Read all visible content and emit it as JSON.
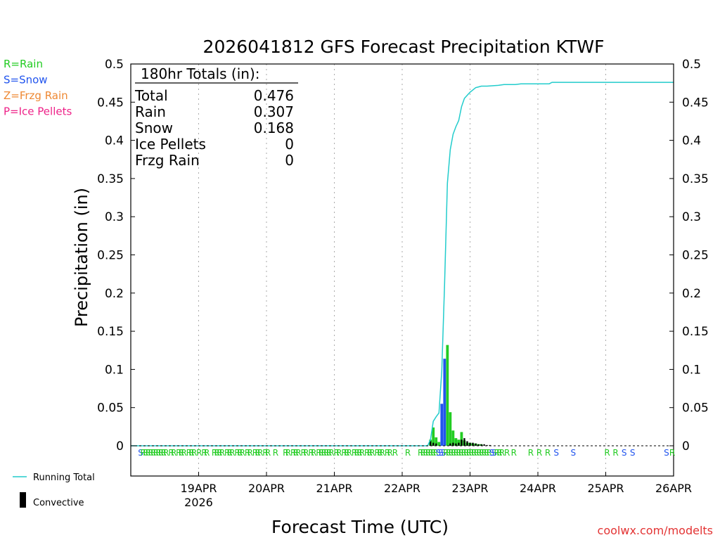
{
  "chart_data": {
    "type": "bar",
    "title": "2026041812 GFS Forecast Precipitation KTWF",
    "xlabel": "Forecast Time (UTC)",
    "ylabel": "Precipitation (in)",
    "ylim": [
      0,
      0.5
    ],
    "y_ticks": [
      "0",
      "0.05",
      "0.1",
      "0.15",
      "0.2",
      "0.25",
      "0.3",
      "0.35",
      "0.4",
      "0.45",
      "0.5"
    ],
    "x_range_hours": [
      -12,
      180
    ],
    "x_ticks": [
      {
        "label": "19APR",
        "sublabel": "2026",
        "hour": 12
      },
      {
        "label": "20APR",
        "sublabel": "",
        "hour": 36
      },
      {
        "label": "21APR",
        "sublabel": "",
        "hour": 60
      },
      {
        "label": "22APR",
        "sublabel": "",
        "hour": 84
      },
      {
        "label": "23APR",
        "sublabel": "",
        "hour": 108
      },
      {
        "label": "24APR",
        "sublabel": "",
        "hour": 132
      },
      {
        "label": "25APR",
        "sublabel": "",
        "hour": 156
      },
      {
        "label": "26APR",
        "sublabel": "",
        "hour": 180
      }
    ],
    "legend_types": [
      {
        "label": "R=Rain",
        "color": "#22cc22"
      },
      {
        "label": "S=Snow",
        "color": "#2255ee"
      },
      {
        "label": "Z=Frzg Rain",
        "color": "#ee8833"
      },
      {
        "label": "P=Ice Pellets",
        "color": "#ee2288"
      }
    ],
    "legend_lines": [
      {
        "label": "Running Total",
        "color": "#22cccc",
        "kind": "line"
      },
      {
        "label": "Convective",
        "color": "#000000",
        "kind": "bar"
      }
    ],
    "totals": {
      "header": "180hr Totals (in):",
      "rows": [
        {
          "label": "Total",
          "value": "0.476"
        },
        {
          "label": "Rain",
          "value": "0.307"
        },
        {
          "label": "Snow",
          "value": "0.168"
        },
        {
          "label": "Ice Pellets",
          "value": "0"
        },
        {
          "label": "Frzg Rain",
          "value": "0"
        }
      ]
    },
    "bars": [
      {
        "hour": 94,
        "type": "R",
        "value": 0.008
      },
      {
        "hour": 95,
        "type": "R",
        "value": 0.024
      },
      {
        "hour": 96,
        "type": "R",
        "value": 0.011
      },
      {
        "hour": 97,
        "type": "R",
        "value": 0.005
      },
      {
        "hour": 98,
        "type": "S",
        "value": 0.055
      },
      {
        "hour": 99,
        "type": "S",
        "value": 0.114
      },
      {
        "hour": 100,
        "type": "R",
        "value": 0.132
      },
      {
        "hour": 101,
        "type": "R",
        "value": 0.044
      },
      {
        "hour": 102,
        "type": "R",
        "value": 0.02
      },
      {
        "hour": 103,
        "type": "R",
        "value": 0.01
      },
      {
        "hour": 104,
        "type": "R",
        "value": 0.008
      },
      {
        "hour": 105,
        "type": "R",
        "value": 0.018
      },
      {
        "hour": 106,
        "type": "R",
        "value": 0.007
      },
      {
        "hour": 107,
        "type": "R",
        "value": 0.004
      },
      {
        "hour": 108,
        "type": "R",
        "value": 0.004
      },
      {
        "hour": 109,
        "type": "R",
        "value": 0.003
      },
      {
        "hour": 110,
        "type": "R",
        "value": 0.003
      },
      {
        "hour": 111,
        "type": "R",
        "value": 0.002
      },
      {
        "hour": 112,
        "type": "R",
        "value": 0.002
      }
    ],
    "convective": [
      {
        "hour": 94,
        "value": 0.006
      },
      {
        "hour": 95,
        "value": 0.004
      },
      {
        "hour": 96,
        "value": 0.003
      },
      {
        "hour": 101,
        "value": 0.003
      },
      {
        "hour": 102,
        "value": 0.004
      },
      {
        "hour": 103,
        "value": 0.003
      },
      {
        "hour": 104,
        "value": 0.004
      },
      {
        "hour": 105,
        "value": 0.008
      },
      {
        "hour": 106,
        "value": 0.01
      },
      {
        "hour": 107,
        "value": 0.006
      },
      {
        "hour": 108,
        "value": 0.004
      },
      {
        "hour": 109,
        "value": 0.004
      },
      {
        "hour": 110,
        "value": 0.003
      },
      {
        "hour": 111,
        "value": 0.002
      },
      {
        "hour": 112,
        "value": 0.002
      },
      {
        "hour": 113,
        "value": 0.002
      },
      {
        "hour": 114,
        "value": 0.001
      },
      {
        "hour": 115,
        "value": 0.001
      }
    ],
    "running_total": [
      [
        -12,
        0
      ],
      [
        93,
        0
      ],
      [
        94,
        0.008
      ],
      [
        95,
        0.032
      ],
      [
        96,
        0.038
      ],
      [
        97,
        0.043
      ],
      [
        98,
        0.098
      ],
      [
        99,
        0.212
      ],
      [
        100,
        0.344
      ],
      [
        101,
        0.388
      ],
      [
        102,
        0.408
      ],
      [
        103,
        0.418
      ],
      [
        104,
        0.426
      ],
      [
        105,
        0.444
      ],
      [
        106,
        0.455
      ],
      [
        107,
        0.459
      ],
      [
        108,
        0.463
      ],
      [
        109,
        0.466
      ],
      [
        110,
        0.469
      ],
      [
        111,
        0.47
      ],
      [
        112,
        0.471
      ],
      [
        114,
        0.471
      ],
      [
        118,
        0.472
      ],
      [
        120,
        0.473
      ],
      [
        124,
        0.473
      ],
      [
        126,
        0.474
      ],
      [
        136,
        0.474
      ],
      [
        137,
        0.476
      ],
      [
        160,
        0.476
      ],
      [
        180,
        0.476
      ]
    ],
    "ptype_markers": [
      {
        "hour": -8.5,
        "text": "S",
        "type": "S"
      },
      {
        "hour": -7.6,
        "text": "R",
        "type": "R"
      },
      {
        "hour": -6.7,
        "text": "R",
        "type": "R"
      },
      {
        "hour": -5.8,
        "text": "R",
        "type": "R"
      },
      {
        "hour": -4.9,
        "text": "R",
        "type": "R"
      },
      {
        "hour": -4.0,
        "text": "R",
        "type": "R"
      },
      {
        "hour": -3.1,
        "text": "R",
        "type": "R"
      },
      {
        "hour": -2.2,
        "text": "R",
        "type": "R"
      },
      {
        "hour": -1.3,
        "text": "R",
        "type": "R"
      },
      {
        "hour": -0.4,
        "text": "R",
        "type": "R"
      },
      {
        "hour": 0.5,
        "text": "R",
        "type": "R"
      },
      {
        "hour": 2.3,
        "text": "R",
        "type": "R"
      },
      {
        "hour": 3.2,
        "text": "R",
        "type": "R"
      },
      {
        "hour": 5.0,
        "text": "R",
        "type": "R"
      },
      {
        "hour": 5.9,
        "text": "R",
        "type": "R"
      },
      {
        "hour": 6.8,
        "text": "R",
        "type": "R"
      },
      {
        "hour": 8.6,
        "text": "R",
        "type": "R"
      },
      {
        "hour": 9.5,
        "text": "R",
        "type": "R"
      },
      {
        "hour": 10.4,
        "text": "R",
        "type": "R"
      },
      {
        "hour": 12.2,
        "text": "R",
        "type": "R"
      },
      {
        "hour": 14.0,
        "text": "R",
        "type": "R"
      },
      {
        "hour": 14.9,
        "text": "R",
        "type": "R"
      },
      {
        "hour": 17.6,
        "text": "R",
        "type": "R"
      },
      {
        "hour": 18.5,
        "text": "R",
        "type": "R"
      },
      {
        "hour": 19.4,
        "text": "R",
        "type": "R"
      },
      {
        "hour": 20.3,
        "text": "R",
        "type": "R"
      },
      {
        "hour": 22.1,
        "text": "R",
        "type": "R"
      },
      {
        "hour": 23.0,
        "text": "R",
        "type": "R"
      },
      {
        "hour": 23.9,
        "text": "R",
        "type": "R"
      },
      {
        "hour": 25.7,
        "text": "R",
        "type": "R"
      },
      {
        "hour": 26.6,
        "text": "R",
        "type": "R"
      },
      {
        "hour": 27.5,
        "text": "R",
        "type": "R"
      },
      {
        "hour": 29.3,
        "text": "R",
        "type": "R"
      },
      {
        "hour": 30.2,
        "text": "R",
        "type": "R"
      },
      {
        "hour": 32.0,
        "text": "R",
        "type": "R"
      },
      {
        "hour": 32.9,
        "text": "R",
        "type": "R"
      },
      {
        "hour": 33.8,
        "text": "R",
        "type": "R"
      },
      {
        "hour": 35.6,
        "text": "R",
        "type": "R"
      },
      {
        "hour": 36.5,
        "text": "R",
        "type": "R"
      },
      {
        "hour": 39.2,
        "text": "R",
        "type": "R"
      },
      {
        "hour": 42.8,
        "text": "R",
        "type": "R"
      },
      {
        "hour": 43.7,
        "text": "R",
        "type": "R"
      },
      {
        "hour": 45.5,
        "text": "R",
        "type": "R"
      },
      {
        "hour": 46.4,
        "text": "R",
        "type": "R"
      },
      {
        "hour": 47.3,
        "text": "R",
        "type": "R"
      },
      {
        "hour": 49.1,
        "text": "R",
        "type": "R"
      },
      {
        "hour": 50.0,
        "text": "R",
        "type": "R"
      },
      {
        "hour": 51.8,
        "text": "R",
        "type": "R"
      },
      {
        "hour": 52.7,
        "text": "R",
        "type": "R"
      },
      {
        "hour": 54.5,
        "text": "R",
        "type": "R"
      },
      {
        "hour": 55.4,
        "text": "R",
        "type": "R"
      },
      {
        "hour": 56.3,
        "text": "R",
        "type": "R"
      },
      {
        "hour": 57.2,
        "text": "R",
        "type": "R"
      },
      {
        "hour": 58.1,
        "text": "R",
        "type": "R"
      },
      {
        "hour": 59.0,
        "text": "R",
        "type": "R"
      },
      {
        "hour": 60.8,
        "text": "R",
        "type": "R"
      },
      {
        "hour": 61.7,
        "text": "R",
        "type": "R"
      },
      {
        "hour": 63.5,
        "text": "R",
        "type": "R"
      },
      {
        "hour": 64.4,
        "text": "R",
        "type": "R"
      },
      {
        "hour": 65.3,
        "text": "R",
        "type": "R"
      },
      {
        "hour": 67.1,
        "text": "R",
        "type": "R"
      },
      {
        "hour": 68.0,
        "text": "R",
        "type": "R"
      },
      {
        "hour": 68.9,
        "text": "R",
        "type": "R"
      },
      {
        "hour": 69.8,
        "text": "R",
        "type": "R"
      },
      {
        "hour": 71.6,
        "text": "R",
        "type": "R"
      },
      {
        "hour": 72.5,
        "text": "R",
        "type": "R"
      },
      {
        "hour": 73.4,
        "text": "R",
        "type": "R"
      },
      {
        "hour": 75.2,
        "text": "R",
        "type": "R"
      },
      {
        "hour": 76.1,
        "text": "R",
        "type": "R"
      },
      {
        "hour": 77.0,
        "text": "R",
        "type": "R"
      },
      {
        "hour": 78.8,
        "text": "R",
        "type": "R"
      },
      {
        "hour": 79.7,
        "text": "R",
        "type": "R"
      },
      {
        "hour": 81.5,
        "text": "R",
        "type": "R"
      },
      {
        "hour": 86.0,
        "text": "R",
        "type": "R"
      },
      {
        "hour": 90.5,
        "text": "R",
        "type": "R"
      },
      {
        "hour": 91.4,
        "text": "R",
        "type": "R"
      },
      {
        "hour": 92.3,
        "text": "R",
        "type": "R"
      },
      {
        "hour": 93.2,
        "text": "R",
        "type": "R"
      },
      {
        "hour": 94.1,
        "text": "R",
        "type": "R"
      },
      {
        "hour": 95.0,
        "text": "R",
        "type": "R"
      },
      {
        "hour": 95.9,
        "text": "R",
        "type": "R"
      },
      {
        "hour": 96.8,
        "text": "S",
        "type": "S"
      },
      {
        "hour": 97.7,
        "text": "S",
        "type": "S"
      },
      {
        "hour": 98.6,
        "text": "S",
        "type": "S"
      },
      {
        "hour": 99.5,
        "text": "R",
        "type": "R"
      },
      {
        "hour": 100.4,
        "text": "R",
        "type": "R"
      },
      {
        "hour": 101.3,
        "text": "R",
        "type": "R"
      },
      {
        "hour": 102.2,
        "text": "R",
        "type": "R"
      },
      {
        "hour": 103.1,
        "text": "R",
        "type": "R"
      },
      {
        "hour": 104.0,
        "text": "R",
        "type": "R"
      },
      {
        "hour": 104.9,
        "text": "R",
        "type": "R"
      },
      {
        "hour": 105.8,
        "text": "R",
        "type": "R"
      },
      {
        "hour": 106.7,
        "text": "R",
        "type": "R"
      },
      {
        "hour": 107.6,
        "text": "R",
        "type": "R"
      },
      {
        "hour": 108.5,
        "text": "R",
        "type": "R"
      },
      {
        "hour": 109.4,
        "text": "R",
        "type": "R"
      },
      {
        "hour": 110.3,
        "text": "R",
        "type": "R"
      },
      {
        "hour": 111.2,
        "text": "R",
        "type": "R"
      },
      {
        "hour": 112.1,
        "text": "R",
        "type": "R"
      },
      {
        "hour": 113.0,
        "text": "R",
        "type": "R"
      },
      {
        "hour": 113.9,
        "text": "R",
        "type": "R"
      },
      {
        "hour": 114.8,
        "text": "R",
        "type": "R"
      },
      {
        "hour": 115.7,
        "text": "S",
        "type": "S"
      },
      {
        "hour": 116.6,
        "text": "S",
        "type": "S"
      },
      {
        "hour": 117.5,
        "text": "R",
        "type": "R"
      },
      {
        "hour": 118.4,
        "text": "R",
        "type": "R"
      },
      {
        "hour": 119.3,
        "text": "R",
        "type": "R"
      },
      {
        "hour": 121.1,
        "text": "R",
        "type": "R"
      },
      {
        "hour": 123.5,
        "text": "R",
        "type": "R"
      },
      {
        "hour": 129.5,
        "text": "R",
        "type": "R"
      },
      {
        "hour": 132.5,
        "text": "R",
        "type": "R"
      },
      {
        "hour": 135.5,
        "text": "R",
        "type": "R"
      },
      {
        "hour": 138.5,
        "text": "S",
        "type": "S"
      },
      {
        "hour": 144.5,
        "text": "S",
        "type": "S"
      },
      {
        "hour": 156.5,
        "text": "R",
        "type": "R"
      },
      {
        "hour": 159.5,
        "text": "R",
        "type": "R"
      },
      {
        "hour": 162.5,
        "text": "S",
        "type": "S"
      },
      {
        "hour": 165.5,
        "text": "S",
        "type": "S"
      },
      {
        "hour": 177.5,
        "text": "S",
        "type": "S"
      },
      {
        "hour": 179.5,
        "text": "R",
        "type": "R"
      }
    ],
    "ptype_colors": {
      "R": "#22cc22",
      "S": "#2255ee",
      "Z": "#ee8833",
      "P": "#ee2288"
    },
    "running_total_color": "#22cccc",
    "convective_color": "#000000",
    "credit": "coolwx.com/modelts"
  }
}
